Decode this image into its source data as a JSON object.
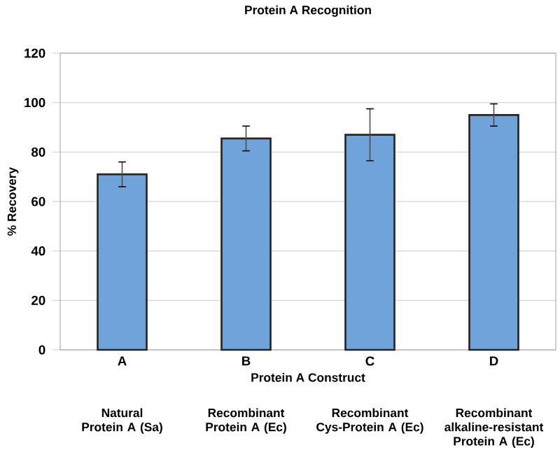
{
  "chart_data": {
    "type": "bar",
    "title": "Protein A Recognition",
    "xlabel": "Protein A Construct",
    "ylabel": "% Recovery",
    "categories": [
      "A",
      "B",
      "C",
      "D"
    ],
    "values": [
      71,
      85.5,
      87,
      95
    ],
    "errors": [
      5,
      5,
      10.5,
      4.5
    ],
    "color": "#6fa3d9",
    "ylim": [
      0,
      120
    ],
    "yticks": [
      0,
      20,
      40,
      60,
      80,
      100,
      120
    ],
    "grid": "y",
    "annotations": [
      "Natural Protein A (Sa)",
      "Recombinant Protein A (Ec)",
      "Recombinant Cys-Protein A (Ec)",
      "Recombinant alkaline-resistant Protein A (Ec)"
    ]
  }
}
